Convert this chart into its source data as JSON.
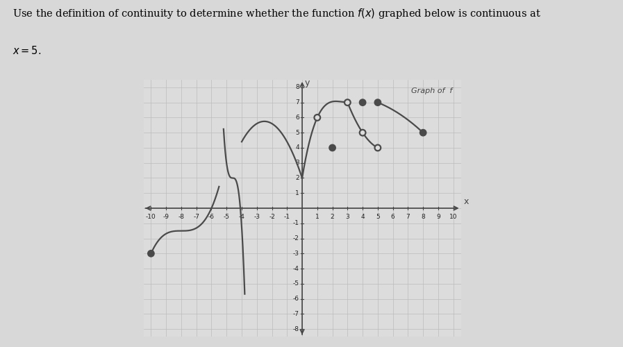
{
  "title_line1": "Use the definition of continuity to determine whether the function $f(x)$ graphed below is continuous at",
  "title_line2": "$x = 5$.",
  "graph_label": "Graph of  f",
  "xlim": [
    -10.5,
    10.5
  ],
  "ylim": [
    -8.5,
    8.5
  ],
  "curve_color": "#4a4a4a",
  "bg_color": "#dcdcdc",
  "open_circles": [
    [
      1,
      6
    ],
    [
      3,
      7
    ],
    [
      4,
      5
    ],
    [
      5,
      4
    ]
  ],
  "solid_dots": [
    [
      -10,
      -3
    ],
    [
      2,
      4
    ],
    [
      4,
      7
    ],
    [
      5,
      7
    ],
    [
      8,
      5
    ]
  ]
}
